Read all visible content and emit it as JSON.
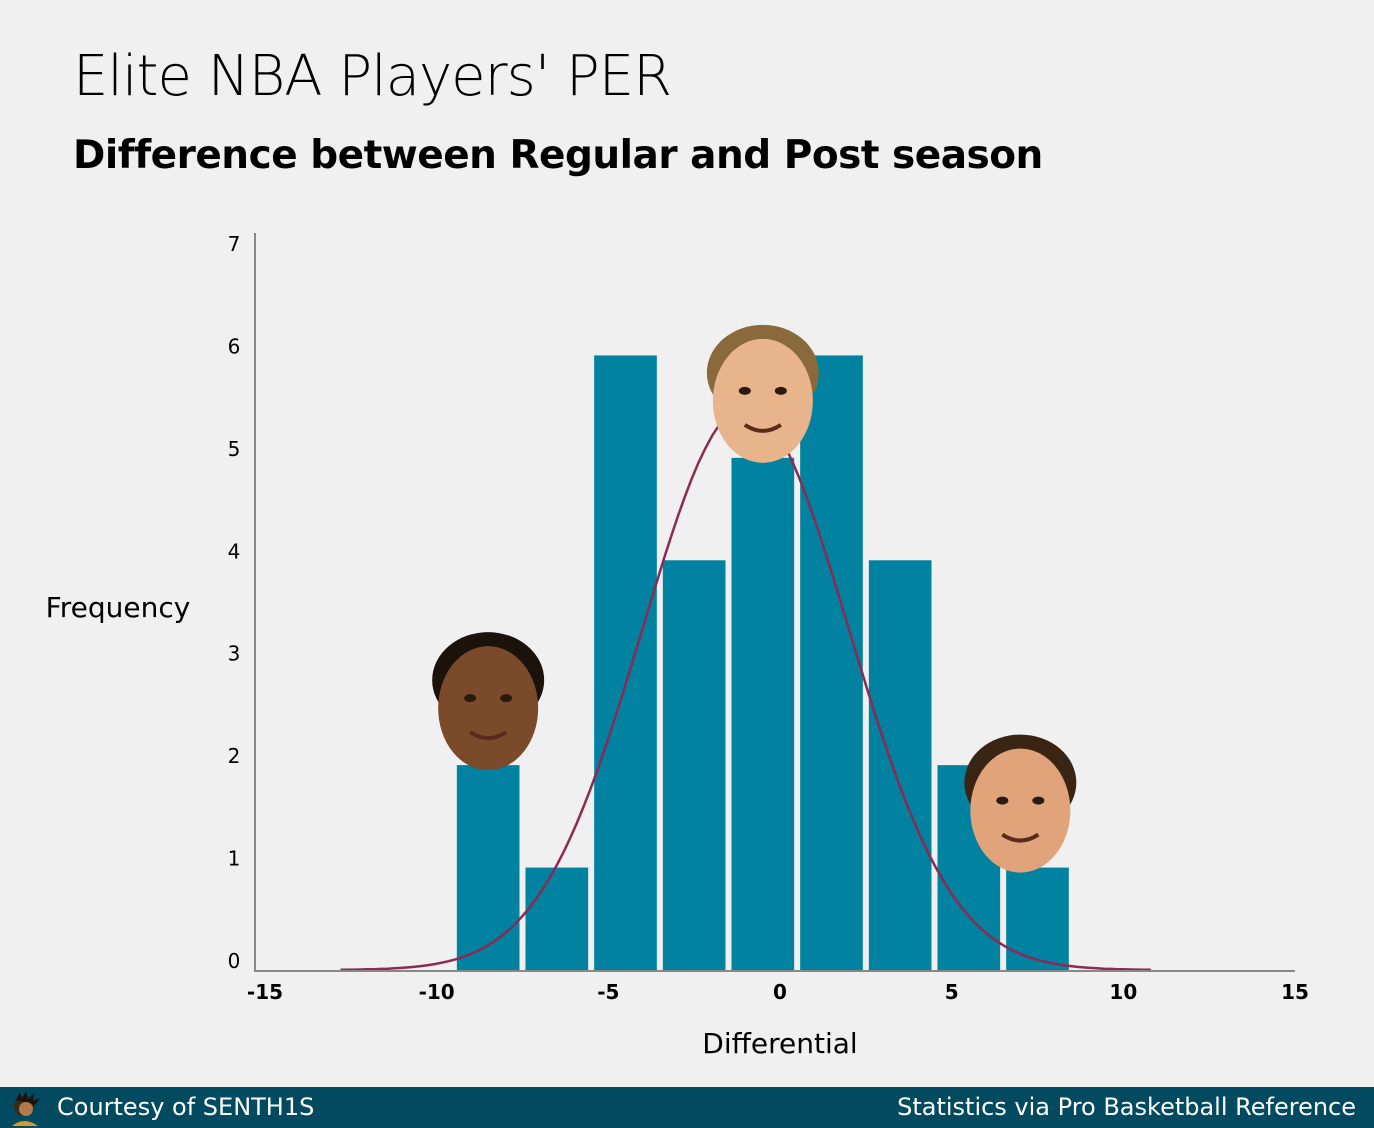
{
  "title": "Elite NBA Players' PER",
  "subtitle": "Difference between Regular and Post season",
  "footer": {
    "credit": "Courtesy of SENTH1S",
    "source": "Statistics via Pro Basketball Reference"
  },
  "colors": {
    "bar": "#0082a0",
    "curve": "#8b2a55",
    "axis": "#888888",
    "footer_bg": "#014a60"
  },
  "chart_data": {
    "type": "bar",
    "xlabel": "Differential",
    "ylabel": "Frequency",
    "xlim": [
      -15,
      15
    ],
    "ylim": [
      0,
      7
    ],
    "x_ticks": [
      -15,
      -10,
      -5,
      0,
      5,
      10,
      15
    ],
    "y_ticks": [
      0,
      1,
      2,
      3,
      4,
      5,
      6,
      7
    ],
    "bins": [
      {
        "center": -8.5,
        "value": 2
      },
      {
        "center": -6.5,
        "value": 1
      },
      {
        "center": -4.5,
        "value": 6
      },
      {
        "center": -2.5,
        "value": 4
      },
      {
        "center": -0.5,
        "value": 5
      },
      {
        "center": 1.5,
        "value": 6
      },
      {
        "center": 3.5,
        "value": 4
      },
      {
        "center": 5.5,
        "value": 2
      },
      {
        "center": 7.5,
        "value": 1
      }
    ],
    "bin_width": 2,
    "curve": {
      "type": "normal-fit",
      "mean": -1.0,
      "sd": 3.0,
      "peak": 5.5,
      "x_range": [
        -12.8,
        10.8
      ]
    },
    "annotations": [
      {
        "type": "player-head",
        "icon": "player-head-icon",
        "x": -8.5,
        "y": 2
      },
      {
        "type": "player-head",
        "icon": "player-head-icon",
        "x": -0.5,
        "y": 5
      },
      {
        "type": "player-head",
        "icon": "player-head-icon",
        "x": 7.0,
        "y": 1
      }
    ],
    "grid": false,
    "legend": "none"
  }
}
